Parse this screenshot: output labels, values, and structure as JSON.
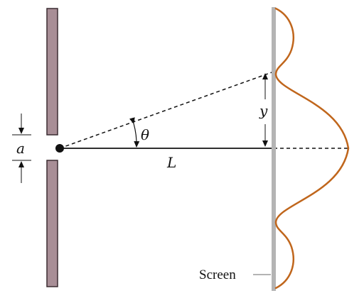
{
  "diagram": {
    "labels": {
      "aperture": "a",
      "angle": "θ",
      "distance": "L",
      "displacement": "y",
      "screen": "Screen"
    },
    "colors": {
      "barrier_fill": "#a88e96",
      "barrier_stroke": "#3a2c30",
      "screen": "#b4b4b4",
      "intensity_curve": "#c0661c",
      "line": "#111111"
    }
  }
}
